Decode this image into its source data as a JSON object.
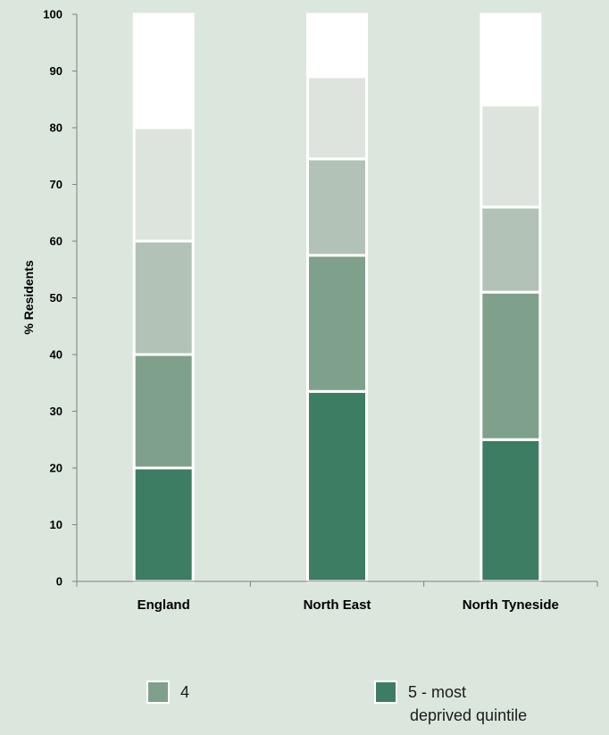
{
  "chart_data": {
    "type": "bar",
    "stacked": true,
    "categories": [
      "England",
      "North East",
      "North Tyneside"
    ],
    "ylabel": "% Residents",
    "ylim": [
      0,
      100
    ],
    "yticks": [
      0,
      10,
      20,
      30,
      40,
      50,
      60,
      70,
      80,
      90,
      100
    ],
    "grid": false,
    "series": [
      {
        "name": "5 - most deprived quintile",
        "color": "#3d7d63",
        "values": [
          20,
          33.5,
          25
        ]
      },
      {
        "name": "4",
        "color": "#7fa08a",
        "values": [
          20,
          24,
          26
        ]
      },
      {
        "color": "#b2c2b6",
        "values": [
          20,
          17,
          15
        ]
      },
      {
        "color": "#dde3dd",
        "values": [
          20,
          14.5,
          18
        ]
      },
      {
        "color": "#ffffff",
        "values": [
          20,
          11,
          16
        ]
      }
    ]
  },
  "legend": {
    "item_4": "4",
    "item_5_line1": "5 - most",
    "item_5_line2": "deprived quintile"
  }
}
